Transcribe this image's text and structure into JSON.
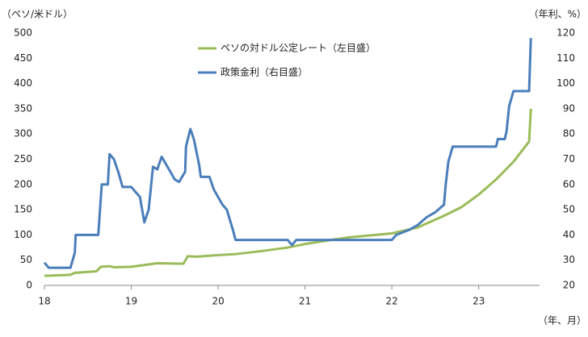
{
  "chart_data": {
    "type": "line",
    "y_label": "（ペソ/米ドル）",
    "y2_label": "（年利、%）",
    "x_label": "（年、月）",
    "xlim": [
      18,
      23.7
    ],
    "xticks": [
      18,
      19,
      20,
      21,
      22,
      23
    ],
    "ylim": [
      0,
      500
    ],
    "yticks": [
      0,
      50,
      100,
      150,
      200,
      250,
      300,
      350,
      400,
      450,
      500
    ],
    "y2lim": [
      20,
      120
    ],
    "y2ticks": [
      20,
      30,
      40,
      50,
      60,
      70,
      80,
      90,
      100,
      110,
      120
    ],
    "grid": false,
    "legend": "upper center",
    "series": [
      {
        "name": "ペソの対ドル公定レート（左目盛）",
        "color": "#9bbb59",
        "axis": "y",
        "x": [
          18.0,
          18.3,
          18.35,
          18.6,
          18.65,
          18.75,
          18.8,
          19.0,
          19.3,
          19.6,
          19.65,
          19.75,
          20.0,
          20.2,
          20.5,
          20.8,
          21.0,
          21.3,
          21.5,
          22.0,
          22.3,
          22.6,
          22.8,
          23.0,
          23.2,
          23.4,
          23.58,
          23.6
        ],
        "values": [
          19,
          21,
          25,
          28,
          37,
          38,
          36,
          37,
          44,
          43,
          58,
          57,
          60,
          62,
          68,
          75,
          82,
          90,
          95,
          103,
          115,
          138,
          155,
          180,
          210,
          245,
          285,
          350
        ]
      },
      {
        "name": "政策金利（右目盛）",
        "color": "#4a7ebb",
        "axis": "y2",
        "x": [
          18.0,
          18.05,
          18.3,
          18.35,
          18.36,
          18.62,
          18.63,
          18.66,
          18.73,
          18.75,
          18.8,
          18.85,
          18.9,
          19.0,
          19.1,
          19.15,
          19.2,
          19.25,
          19.3,
          19.35,
          19.4,
          19.5,
          19.55,
          19.62,
          19.63,
          19.68,
          19.72,
          19.78,
          19.8,
          19.9,
          19.95,
          20.0,
          20.05,
          20.1,
          20.17,
          20.2,
          20.8,
          20.85,
          20.9,
          21.0,
          22.0,
          22.05,
          22.2,
          22.3,
          22.4,
          22.5,
          22.6,
          22.62,
          22.65,
          22.7,
          23.2,
          23.22,
          23.3,
          23.32,
          23.35,
          23.4,
          23.58,
          23.6
        ],
        "values": [
          29,
          27,
          27,
          33,
          40,
          40,
          45,
          60,
          60,
          72,
          70,
          65,
          59,
          59,
          55,
          45,
          50,
          67,
          66,
          71,
          68,
          62,
          61,
          65,
          75,
          82,
          78,
          68,
          63,
          63,
          58,
          55,
          52,
          50,
          42,
          38,
          38,
          36,
          38,
          38,
          38,
          40,
          42,
          44,
          47,
          49,
          52,
          60,
          69,
          75,
          75,
          78,
          78,
          81,
          91,
          97,
          97,
          118
        ]
      }
    ]
  }
}
